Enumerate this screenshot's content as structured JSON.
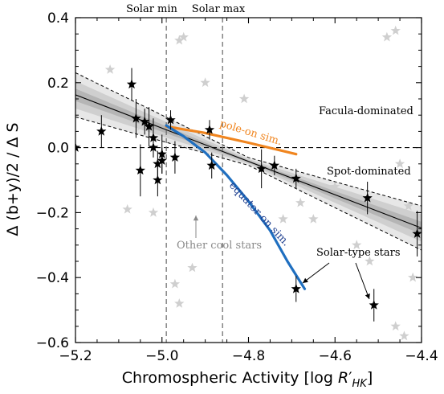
{
  "chart_data": {
    "type": "scatter",
    "xlabel": "Chromospheric Activity [log R′HK]",
    "ylabel": "Δ (b+y)/2 / Δ S",
    "xlim": [
      -5.2,
      -4.4
    ],
    "ylim": [
      -0.6,
      0.4
    ],
    "xticks": [
      -5.2,
      -5.0,
      -4.8,
      -4.6,
      -4.4
    ],
    "xtick_labels": [
      "−5.2",
      "−5.0",
      "−4.8",
      "−4.6",
      "−4.4"
    ],
    "yticks": [
      -0.6,
      -0.4,
      -0.2,
      0.0,
      0.2,
      0.4
    ],
    "ytick_labels": [
      "−0.6",
      "−0.4",
      "−0.2",
      "0.0",
      "0.2",
      "0.4"
    ],
    "grid": false,
    "vlines": [
      {
        "x": -4.99,
        "label": "Solar min"
      },
      {
        "x": -4.86,
        "label": "Solar max"
      }
    ],
    "hline_y": 0.0,
    "fit": {
      "slope": -0.5125,
      "intercept": -2.5025,
      "band_center_x": -4.8
    },
    "series": [
      {
        "style": "black-star",
        "points": [
          {
            "x": -5.2,
            "y": 0.0,
            "err": 0.01
          },
          {
            "x": -5.14,
            "y": 0.05,
            "err": 0.05
          },
          {
            "x": -5.07,
            "y": 0.195,
            "err": 0.05
          },
          {
            "x": -5.06,
            "y": 0.09,
            "err": 0.06
          },
          {
            "x": -5.05,
            "y": -0.07,
            "err": 0.08
          },
          {
            "x": -5.04,
            "y": 0.08,
            "err": 0.04
          },
          {
            "x": -5.03,
            "y": 0.065,
            "err": 0.06
          },
          {
            "x": -5.02,
            "y": 0.0,
            "err": 0.03
          },
          {
            "x": -5.02,
            "y": 0.03,
            "err": 0.06
          },
          {
            "x": -5.01,
            "y": -0.05,
            "err": 0.04
          },
          {
            "x": -5.01,
            "y": -0.1,
            "err": 0.05
          },
          {
            "x": -5.0,
            "y": -0.04,
            "err": 0.04
          },
          {
            "x": -5.0,
            "y": -0.02,
            "err": 0.06
          },
          {
            "x": -4.98,
            "y": 0.085,
            "err": 0.03
          },
          {
            "x": -4.97,
            "y": -0.03,
            "err": 0.05
          },
          {
            "x": -4.89,
            "y": 0.055,
            "err": 0.03
          },
          {
            "x": -4.885,
            "y": -0.055,
            "err": 0.04
          },
          {
            "x": -4.77,
            "y": -0.065,
            "err": 0.06
          },
          {
            "x": -4.74,
            "y": -0.055,
            "err": 0.03
          },
          {
            "x": -4.69,
            "y": -0.095,
            "err": 0.03
          },
          {
            "x": -4.525,
            "y": -0.155,
            "err": 0.05
          },
          {
            "x": -4.41,
            "y": -0.265,
            "err": 0.07
          },
          {
            "x": -4.69,
            "y": -0.435,
            "err": 0.04
          },
          {
            "x": -4.51,
            "y": -0.485,
            "err": 0.05
          }
        ]
      },
      {
        "style": "gray-star",
        "name": "Other cool stars",
        "points": [
          {
            "x": -5.12,
            "y": 0.24
          },
          {
            "x": -5.08,
            "y": -0.19
          },
          {
            "x": -5.05,
            "y": 0.065
          },
          {
            "x": -5.02,
            "y": -0.2
          },
          {
            "x": -4.97,
            "y": -0.42
          },
          {
            "x": -4.96,
            "y": 0.33
          },
          {
            "x": -4.96,
            "y": -0.48
          },
          {
            "x": -4.95,
            "y": 0.34
          },
          {
            "x": -4.93,
            "y": -0.37
          },
          {
            "x": -4.9,
            "y": 0.2
          },
          {
            "x": -4.81,
            "y": 0.15
          },
          {
            "x": -4.72,
            "y": -0.22
          },
          {
            "x": -4.68,
            "y": -0.17
          },
          {
            "x": -4.65,
            "y": -0.22
          },
          {
            "x": -4.6,
            "y": -0.12
          },
          {
            "x": -4.55,
            "y": -0.3
          },
          {
            "x": -4.52,
            "y": -0.35
          },
          {
            "x": -4.48,
            "y": 0.34
          },
          {
            "x": -4.46,
            "y": 0.36
          },
          {
            "x": -4.45,
            "y": -0.05
          },
          {
            "x": -4.43,
            "y": -0.18
          },
          {
            "x": -4.42,
            "y": -0.4
          },
          {
            "x": -4.46,
            "y": -0.55
          },
          {
            "x": -4.44,
            "y": -0.58
          }
        ]
      }
    ],
    "curves": [
      {
        "label": "pole-on sim.",
        "color": "#f0851f",
        "points": [
          [
            -4.99,
            0.065
          ],
          [
            -4.9,
            0.045
          ],
          [
            -4.8,
            0.015
          ],
          [
            -4.69,
            -0.02
          ]
        ]
      },
      {
        "label": "equator-on sim.",
        "color": "#1f6fc0",
        "points": [
          [
            -4.99,
            0.068
          ],
          [
            -4.95,
            0.035
          ],
          [
            -4.9,
            -0.015
          ],
          [
            -4.85,
            -0.085
          ],
          [
            -4.8,
            -0.165
          ],
          [
            -4.75,
            -0.255
          ],
          [
            -4.71,
            -0.35
          ],
          [
            -4.67,
            -0.435
          ]
        ]
      }
    ],
    "annotations": {
      "facula": "Facula-dominated",
      "spot": "Spot-dominated",
      "solar_type": "Solar-type stars",
      "other": "Other cool stars"
    }
  }
}
